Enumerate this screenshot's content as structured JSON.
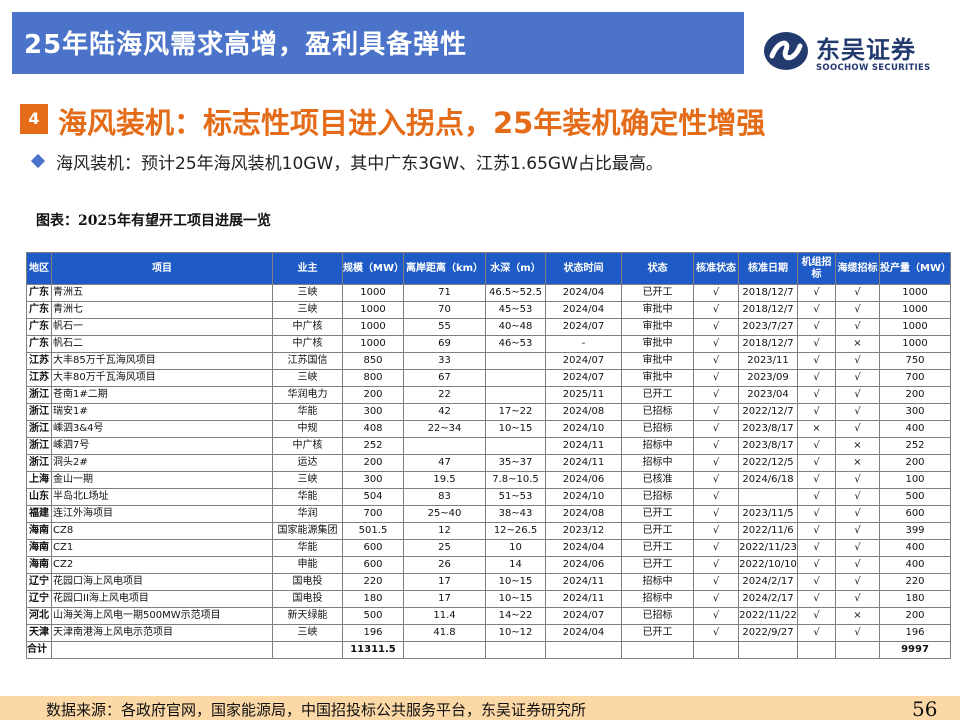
{
  "header": {
    "title": "25年陆海风需求高增，盈利具备弹性",
    "logo_cn": "东吴证券",
    "logo_en": "SOOCHOW SECURITIES",
    "title_bar_color": "#4a73c9"
  },
  "section": {
    "number": "4",
    "title": "海风装机：标志性项目进入拐点，25年装机确定性增强",
    "accent_color": "#e46c19"
  },
  "bullet": {
    "icon": "diamond-bullet-icon",
    "text": "海风装机：预计25年海风装机10GW，其中广东3GW、江苏1.65GW占比最高。"
  },
  "table": {
    "caption": "图表：2025年有望开工项目进展一览",
    "header_color": "#1f5bc6",
    "headers": [
      "地区",
      "项目",
      "业主",
      "规模（MW）",
      "离岸距离（km）",
      "水深（m）",
      "状态时间",
      "状态",
      "核准状态",
      "核准日期",
      "机组招标",
      "海缆招标",
      "投产量（MW）"
    ],
    "rows": [
      [
        "广东",
        "青洲五",
        "三峡",
        "1000",
        "71",
        "46.5~52.5",
        "2024/04",
        "已开工",
        "√",
        "2018/12/7",
        "√",
        "√",
        "1000"
      ],
      [
        "广东",
        "青洲七",
        "三峡",
        "1000",
        "70",
        "45~53",
        "2024/04",
        "审批中",
        "√",
        "2018/12/7",
        "√",
        "√",
        "1000"
      ],
      [
        "广东",
        "帆石一",
        "中广核",
        "1000",
        "55",
        "40~48",
        "2024/07",
        "审批中",
        "√",
        "2023/7/27",
        "√",
        "√",
        "1000"
      ],
      [
        "广东",
        "帆石二",
        "中广核",
        "1000",
        "69",
        "46~53",
        "-",
        "审批中",
        "√",
        "2018/12/7",
        "√",
        "×",
        "1000"
      ],
      [
        "江苏",
        "大丰85万千瓦海风项目",
        "江苏国信",
        "850",
        "33",
        "",
        "2024/07",
        "审批中",
        "√",
        "2023/11",
        "√",
        "√",
        "750"
      ],
      [
        "江苏",
        "大丰80万千瓦海风项目",
        "三峡",
        "800",
        "67",
        "",
        "2024/07",
        "审批中",
        "√",
        "2023/09",
        "√",
        "√",
        "700"
      ],
      [
        "浙江",
        "苍南1#二期",
        "华润电力",
        "200",
        "22",
        "",
        "2025/11",
        "已开工",
        "√",
        "2023/04",
        "√",
        "√",
        "200"
      ],
      [
        "浙江",
        "瑞安1#",
        "华能",
        "300",
        "42",
        "17~22",
        "2024/08",
        "已招标",
        "√",
        "2022/12/7",
        "√",
        "√",
        "300"
      ],
      [
        "浙江",
        "嵊泗3&4号",
        "中规",
        "408",
        "22~34",
        "10~15",
        "2024/10",
        "已招标",
        "√",
        "2023/8/17",
        "×",
        "√",
        "400"
      ],
      [
        "浙江",
        "嵊泗7号",
        "中广核",
        "252",
        "",
        "",
        "2024/11",
        "招标中",
        "√",
        "2023/8/17",
        "√",
        "×",
        "252"
      ],
      [
        "浙江",
        "洞头2#",
        "运达",
        "200",
        "47",
        "35~37",
        "2024/11",
        "招标中",
        "√",
        "2022/12/5",
        "√",
        "×",
        "200"
      ],
      [
        "上海",
        "金山一期",
        "三峡",
        "300",
        "19.5",
        "7.8~10.5",
        "2024/06",
        "已核准",
        "√",
        "2024/6/18",
        "√",
        "√",
        "100"
      ],
      [
        "山东",
        "半岛北L场址",
        "华能",
        "504",
        "83",
        "51~53",
        "2024/10",
        "已招标",
        "√",
        "",
        "√",
        "√",
        "500"
      ],
      [
        "福建",
        "连江外海项目",
        "华润",
        "700",
        "25~40",
        "38~43",
        "2024/08",
        "已开工",
        "√",
        "2023/11/5",
        "√",
        "√",
        "600"
      ],
      [
        "海南",
        "CZ8",
        "国家能源集团",
        "501.5",
        "12",
        "12~26.5",
        "2023/12",
        "已开工",
        "√",
        "2022/11/6",
        "√",
        "√",
        "399"
      ],
      [
        "海南",
        "CZ1",
        "华能",
        "600",
        "25",
        "10",
        "2024/04",
        "已开工",
        "√",
        "2022/11/23",
        "√",
        "√",
        "400"
      ],
      [
        "海南",
        "CZ2",
        "申能",
        "600",
        "26",
        "14",
        "2024/06",
        "已开工",
        "√",
        "2022/10/10",
        "√",
        "√",
        "400"
      ],
      [
        "辽宁",
        "花园口海上风电项目",
        "国电投",
        "220",
        "17",
        "10~15",
        "2024/11",
        "招标中",
        "√",
        "2024/2/17",
        "√",
        "√",
        "220"
      ],
      [
        "辽宁",
        "花园口II海上风电项目",
        "国电投",
        "180",
        "17",
        "10~15",
        "2024/11",
        "招标中",
        "√",
        "2024/2/17",
        "√",
        "√",
        "180"
      ],
      [
        "河北",
        "山海关海上风电一期500MW示范项目",
        "新天绿能",
        "500",
        "11.4",
        "14~22",
        "2024/07",
        "已招标",
        "√",
        "2022/11/22",
        "√",
        "×",
        "200"
      ],
      [
        "天津",
        "天津南港海上风电示范项目",
        "三峡",
        "196",
        "41.8",
        "10~12",
        "2024/04",
        "已开工",
        "√",
        "2022/9/27",
        "√",
        "√",
        "196"
      ]
    ],
    "total": {
      "label": "合计",
      "scale": "11311.5",
      "output": "9997"
    }
  },
  "footer": {
    "source": "数据来源：各政府官网，国家能源局，中国招投标公共服务平台，东吴证券研究所",
    "page_number": "56",
    "bar_color": "#fbd8a6"
  }
}
